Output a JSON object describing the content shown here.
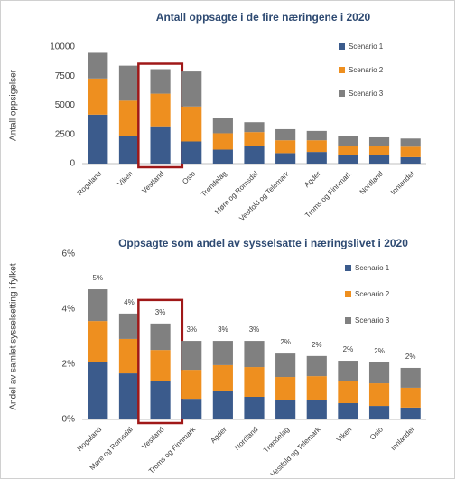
{
  "chart_data": [
    {
      "type": "stacked_bar",
      "title": "Antall oppsagte i de fire næringene i 2020",
      "y_label": "Antall oppsigelser",
      "categories": [
        "Rogaland",
        "Viken",
        "Vestland",
        "Oslo",
        "Trøndelag",
        "Møre og Romsdal",
        "Vestfold og Telemark",
        "Agder",
        "Troms og Finnmark",
        "Nordland",
        "Innlandet"
      ],
      "series": [
        {
          "name": "Scenario 1",
          "color": "#3b5b8c",
          "values": [
            4200,
            2400,
            3200,
            1900,
            1200,
            1500,
            900,
            1000,
            700,
            700,
            550
          ]
        },
        {
          "name": "Scenario 2",
          "color": "#ee8f1f",
          "values": [
            3100,
            3000,
            2800,
            3000,
            1400,
            1200,
            1100,
            1000,
            850,
            800,
            900
          ]
        },
        {
          "name": "Scenario 3",
          "color": "#808080",
          "values": [
            2200,
            3000,
            2100,
            3000,
            1300,
            850,
            950,
            800,
            850,
            750,
            700
          ]
        }
      ],
      "ylim": [
        0,
        10000
      ],
      "yticks": [
        0,
        2500,
        5000,
        7500,
        10000
      ],
      "grid": false,
      "legend": "right",
      "highlight": "Vestland"
    },
    {
      "type": "stacked_bar",
      "title": "Oppsagte som andel av sysselsatte i næringslivet i 2020",
      "y_label": "Andel av samlet sysselsetting i fylket",
      "categories": [
        "Rogaland",
        "Møre og Romsdal",
        "Vestland",
        "Troms og Finnmark",
        "Agder",
        "Nordland",
        "Trøndelag",
        "Vestfold og Telemark",
        "Viken",
        "Oslo",
        "Innlandet"
      ],
      "series": [
        {
          "name": "Scenario 1",
          "color": "#3b5b8c",
          "values": [
            2.07,
            1.67,
            1.38,
            0.75,
            1.05,
            0.82,
            0.72,
            0.72,
            0.59,
            0.49,
            0.43
          ]
        },
        {
          "name": "Scenario 2",
          "color": "#ee8f1f",
          "values": [
            1.5,
            1.25,
            1.14,
            1.05,
            0.92,
            1.08,
            0.82,
            0.85,
            0.79,
            0.82,
            0.72
          ]
        },
        {
          "name": "Scenario 3",
          "color": "#808080",
          "values": [
            1.15,
            0.92,
            0.96,
            1.05,
            0.88,
            0.95,
            0.85,
            0.73,
            0.75,
            0.76,
            0.72
          ]
        }
      ],
      "value_labels": [
        "5%",
        "4%",
        "3%",
        "3%",
        "3%",
        "3%",
        "2%",
        "2%",
        "2%",
        "2%",
        "2%"
      ],
      "ylim": [
        0,
        6
      ],
      "yticks": [
        {
          "value": 0,
          "label": "0%"
        },
        {
          "value": 2,
          "label": "2%"
        },
        {
          "value": 4,
          "label": "4%"
        },
        {
          "value": 6,
          "label": "6%"
        }
      ],
      "grid": false,
      "legend": "right",
      "highlight": "Vestland"
    }
  ]
}
